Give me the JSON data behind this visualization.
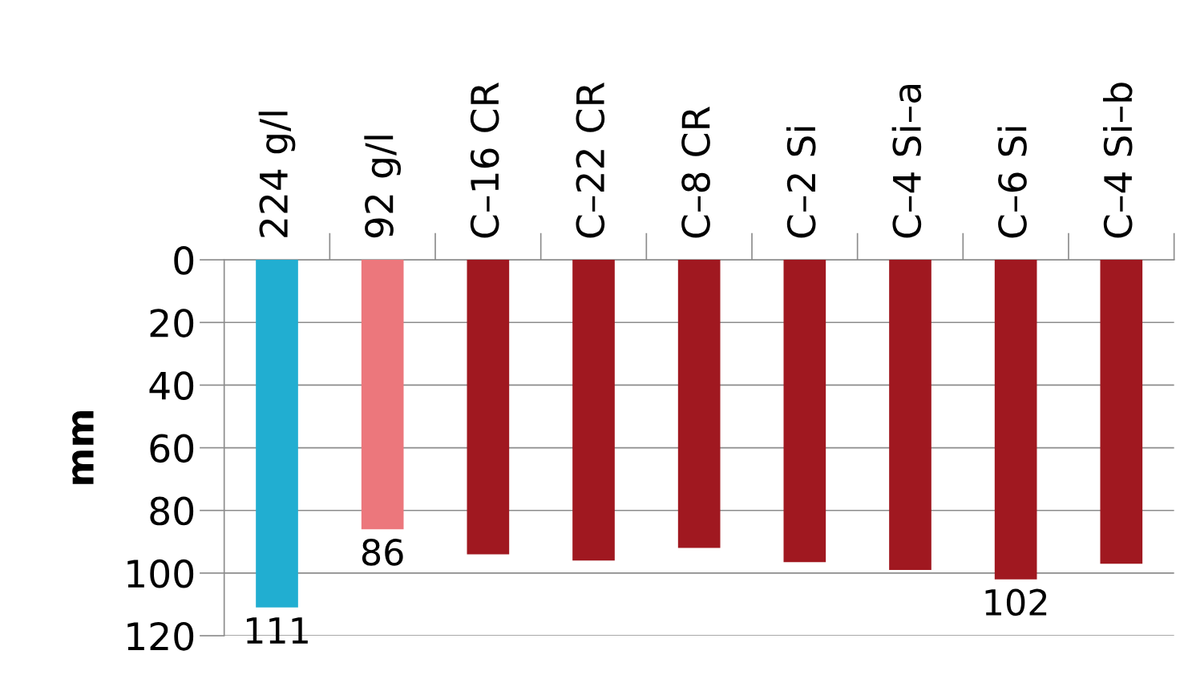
{
  "chart_data": {
    "type": "bar",
    "ylabel": "mm",
    "categories": [
      "224 g/l",
      "92 g/l",
      "C–16 CR",
      "C–22 CR",
      "C–8 CR",
      "C–2 Si",
      "C–4 Si–a",
      "C–6 Si",
      "C–4 Si–b"
    ],
    "values": [
      111,
      86,
      94,
      96,
      92,
      96.5,
      99,
      102,
      97
    ],
    "colors": [
      "#21aed1",
      "#ec777c",
      "#a01820",
      "#a01820",
      "#a01820",
      "#a01820",
      "#a01820",
      "#a01820",
      "#a01820"
    ],
    "value_labels": [
      "111",
      "86",
      null,
      null,
      null,
      null,
      null,
      "102",
      null
    ],
    "ylim": [
      120,
      0
    ],
    "yticks": [
      0,
      20,
      40,
      60,
      80,
      100,
      120
    ],
    "grid": "y"
  }
}
